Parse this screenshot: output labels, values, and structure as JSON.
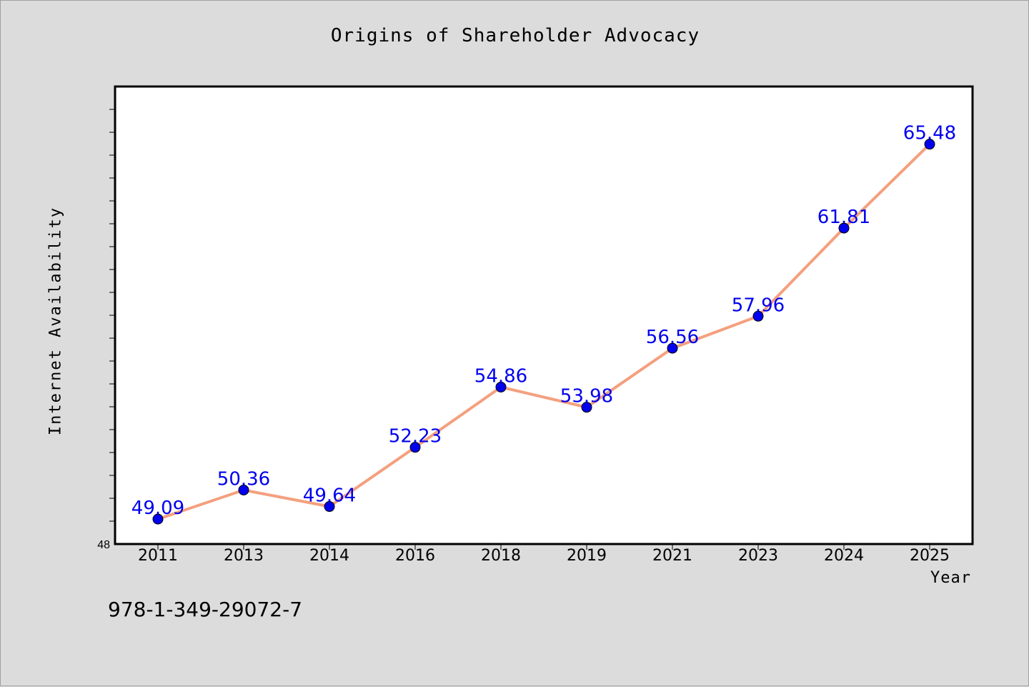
{
  "chart_data": {
    "type": "line",
    "title": "Origins of Shareholder Advocacy",
    "xlabel": "Year",
    "ylabel": "Internet Availability",
    "categories": [
      "2011",
      "2013",
      "2014",
      "2016",
      "2018",
      "2019",
      "2021",
      "2023",
      "2024",
      "2025"
    ],
    "series": [
      {
        "values": [
          49.09,
          50.36,
          49.64,
          52.23,
          54.86,
          53.98,
          56.56,
          57.96,
          61.81,
          65.48
        ],
        "color": "#f4a07e",
        "marker_color": "#0000ee"
      }
    ],
    "ylim": [
      48,
      68
    ],
    "y_tick_labels": [
      "48"
    ],
    "data_labels": true,
    "grid": false,
    "plot_background": "#ffffff",
    "figure_background": "#dcdcdc"
  },
  "annotation": {
    "isbn": "978-1-349-29072-7"
  }
}
